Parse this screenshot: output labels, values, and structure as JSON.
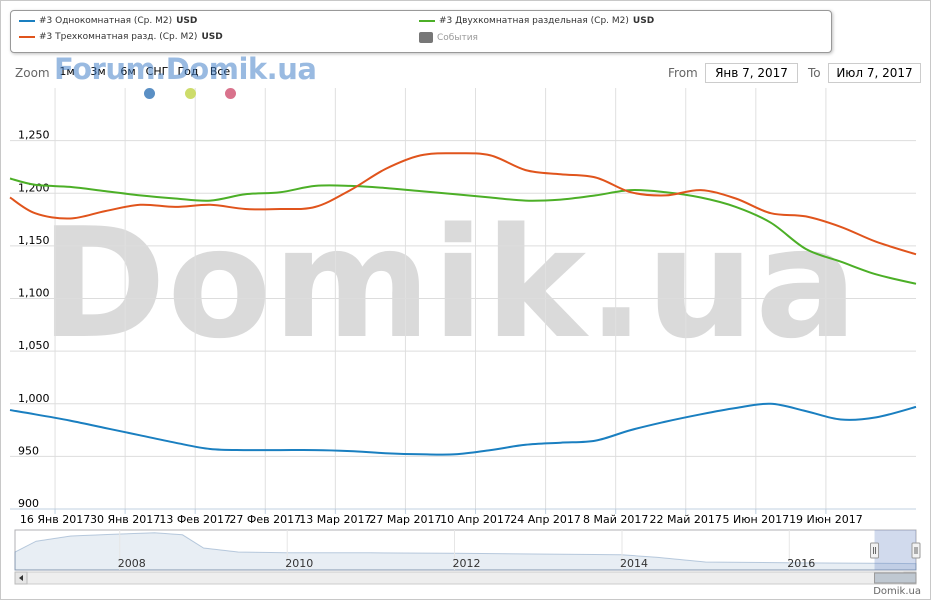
{
  "legend": {
    "items": [
      {
        "label": "#3 Однокомнатная (Ср. М2)",
        "unit": "USD",
        "color": "#1a7fc0"
      },
      {
        "label": "#3 Двухкомнатная раздельная (Ср. М2)",
        "unit": "USD",
        "color": "#4caf27"
      },
      {
        "label": "#3 Трехкомнатная разд. (Ср. М2)",
        "unit": "USD",
        "color": "#e0541c"
      },
      {
        "label": "События",
        "unit": "",
        "color": "#777777"
      }
    ]
  },
  "zoom": {
    "label": "Zoom",
    "buttons": [
      "1м",
      "3м",
      "6м",
      "СНГ",
      "Год",
      "Все"
    ]
  },
  "range": {
    "from_label": "From",
    "from_value": "Янв 7, 2017",
    "to_label": "To",
    "to_value": "Июл 7, 2017"
  },
  "watermark": {
    "small": "Forum.Domik.ua",
    "big": "Domik.ua"
  },
  "event_flags": [
    "#5a8fc4",
    "#cddc6a",
    "#d9728c"
  ],
  "credit": "Domik.ua",
  "chart_data": {
    "type": "line",
    "ylim": [
      900,
      1300
    ],
    "yticks": [
      900,
      950,
      1000,
      1050,
      1100,
      1150,
      1200,
      1250
    ],
    "ytick_labels": [
      "900",
      "950",
      "1,000",
      "1,050",
      "1,100",
      "1,150",
      "1,200",
      "1,250"
    ],
    "xrange": [
      "2017-01-07",
      "2017-07-07"
    ],
    "xticks": [
      "2017-01-16",
      "2017-01-30",
      "2017-02-13",
      "2017-02-27",
      "2017-03-13",
      "2017-03-27",
      "2017-04-10",
      "2017-04-24",
      "2017-05-08",
      "2017-05-22",
      "2017-06-05",
      "2017-06-19"
    ],
    "xtick_labels": [
      "16 Янв 2017",
      "30 Янв 2017",
      "13 Фев 2017",
      "27 Фев 2017",
      "13 Мар 2017",
      "27 Мар 2017",
      "10 Апр 2017",
      "24 Апр 2017",
      "8 Май 2017",
      "22 Май 2017",
      "5 Июн 2017",
      "19 Июн 2017"
    ],
    "grid": true,
    "series": [
      {
        "name": "#3 Однокомнатная (Ср. М2)",
        "color": "#1a7fc0",
        "x": [
          "2017-01-07",
          "2017-01-12",
          "2017-01-19",
          "2017-01-26",
          "2017-02-02",
          "2017-02-09",
          "2017-02-16",
          "2017-02-23",
          "2017-03-02",
          "2017-03-09",
          "2017-03-16",
          "2017-03-23",
          "2017-03-30",
          "2017-04-06",
          "2017-04-13",
          "2017-04-20",
          "2017-04-27",
          "2017-05-04",
          "2017-05-11",
          "2017-05-18",
          "2017-05-25",
          "2017-06-01",
          "2017-06-08",
          "2017-06-15",
          "2017-06-22",
          "2017-06-29",
          "2017-07-07"
        ],
        "values": [
          994,
          990,
          984,
          977,
          970,
          963,
          957,
          956,
          956,
          956,
          955,
          953,
          952,
          952,
          956,
          961,
          963,
          965,
          975,
          983,
          990,
          996,
          1000,
          993,
          985,
          987,
          997
        ]
      },
      {
        "name": "#3 Двухкомнатная раздельная (Ср. М2)",
        "color": "#4caf27",
        "x": [
          "2017-01-07",
          "2017-01-12",
          "2017-01-19",
          "2017-01-26",
          "2017-02-02",
          "2017-02-09",
          "2017-02-16",
          "2017-02-23",
          "2017-03-02",
          "2017-03-09",
          "2017-03-16",
          "2017-03-23",
          "2017-03-30",
          "2017-04-06",
          "2017-04-13",
          "2017-04-20",
          "2017-04-27",
          "2017-05-04",
          "2017-05-11",
          "2017-05-18",
          "2017-05-25",
          "2017-06-01",
          "2017-06-08",
          "2017-06-15",
          "2017-06-22",
          "2017-06-29",
          "2017-07-07"
        ],
        "values": [
          1214,
          1208,
          1206,
          1202,
          1198,
          1195,
          1193,
          1199,
          1201,
          1207,
          1207,
          1205,
          1202,
          1199,
          1196,
          1193,
          1194,
          1198,
          1203,
          1201,
          1196,
          1187,
          1172,
          1147,
          1135,
          1123,
          1114
        ]
      },
      {
        "name": "#3 Трехкомнатная разд. (Ср. М2)",
        "color": "#e0541c",
        "x": [
          "2017-01-07",
          "2017-01-12",
          "2017-01-19",
          "2017-01-26",
          "2017-02-02",
          "2017-02-09",
          "2017-02-16",
          "2017-02-23",
          "2017-03-02",
          "2017-03-09",
          "2017-03-16",
          "2017-03-23",
          "2017-03-30",
          "2017-04-06",
          "2017-04-13",
          "2017-04-20",
          "2017-04-27",
          "2017-05-04",
          "2017-05-11",
          "2017-05-18",
          "2017-05-25",
          "2017-06-01",
          "2017-06-08",
          "2017-06-15",
          "2017-06-22",
          "2017-06-29",
          "2017-07-07"
        ],
        "values": [
          1196,
          1181,
          1176,
          1183,
          1189,
          1187,
          1189,
          1185,
          1185,
          1187,
          1203,
          1223,
          1236,
          1238,
          1236,
          1222,
          1218,
          1215,
          1201,
          1198,
          1203,
          1195,
          1181,
          1178,
          1168,
          1154,
          1142
        ]
      }
    ],
    "navigator": {
      "xticks": [
        "2008",
        "2010",
        "2012",
        "2014",
        "2016"
      ],
      "xrange": [
        "2006-10-01",
        "2017-07-07"
      ],
      "x": [
        "2006-10-01",
        "2007-01-01",
        "2007-06-01",
        "2008-01-01",
        "2008-06-01",
        "2008-10-01",
        "2009-01-01",
        "2009-06-01",
        "2010-01-01",
        "2011-01-01",
        "2012-01-01",
        "2013-01-01",
        "2014-01-01",
        "2014-06-01",
        "2015-01-01",
        "2016-01-01",
        "2017-01-01",
        "2017-07-07"
      ],
      "values": [
        0.45,
        0.72,
        0.85,
        0.9,
        0.93,
        0.88,
        0.55,
        0.45,
        0.43,
        0.43,
        0.42,
        0.4,
        0.38,
        0.32,
        0.2,
        0.18,
        0.17,
        0.16
      ]
    }
  }
}
